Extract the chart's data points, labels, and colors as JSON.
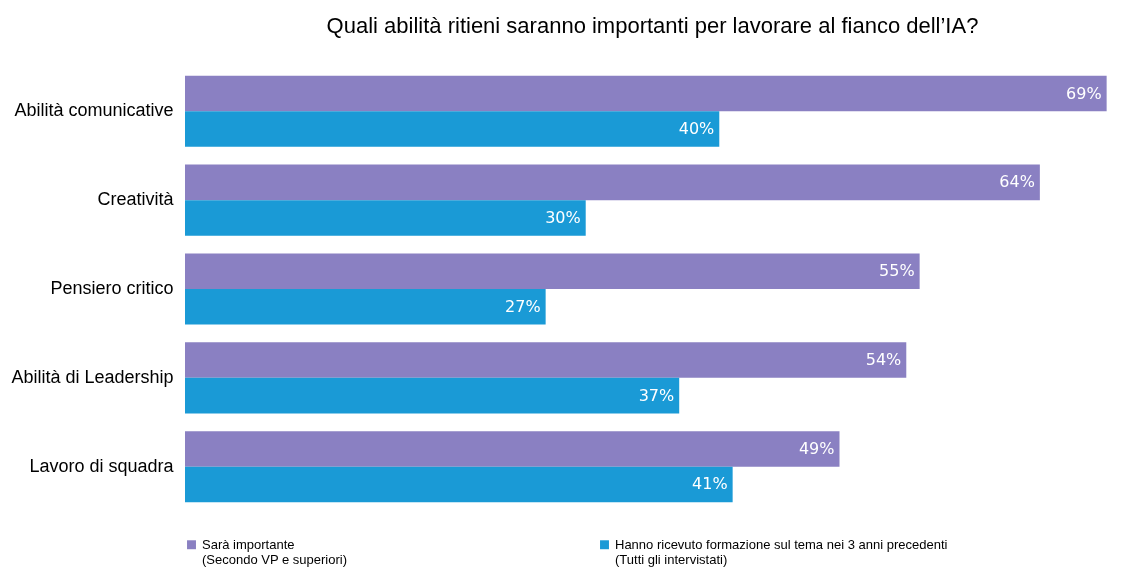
{
  "chart_data": {
    "type": "bar",
    "orientation": "horizontal",
    "title": "Quali abilità ritieni saranno importanti per lavorare al fianco dell’IA?",
    "categories": [
      "Abilità comunicative",
      "Creatività",
      "Pensiero critico",
      "Abilità di Leadership",
      "Lavoro di squadra"
    ],
    "series": [
      {
        "name": "Sarà importante\n(Secondo VP e superiori)",
        "color": "#8a80c2",
        "values": [
          69,
          64,
          55,
          54,
          49
        ],
        "value_labels": [
          "69%",
          "64%",
          "55%",
          "54%",
          "49%"
        ]
      },
      {
        "name": "Hanno ricevuto formazione sul tema nei 3 anni precedenti\n(Tutti gli intervistati)",
        "color": "#1a9ad6",
        "values": [
          40,
          30,
          27,
          37,
          41
        ],
        "value_labels": [
          "40%",
          "30%",
          "27%",
          "37%",
          "41%"
        ]
      }
    ],
    "tick_labels": "y",
    "grid": false,
    "legend": "bottom"
  }
}
